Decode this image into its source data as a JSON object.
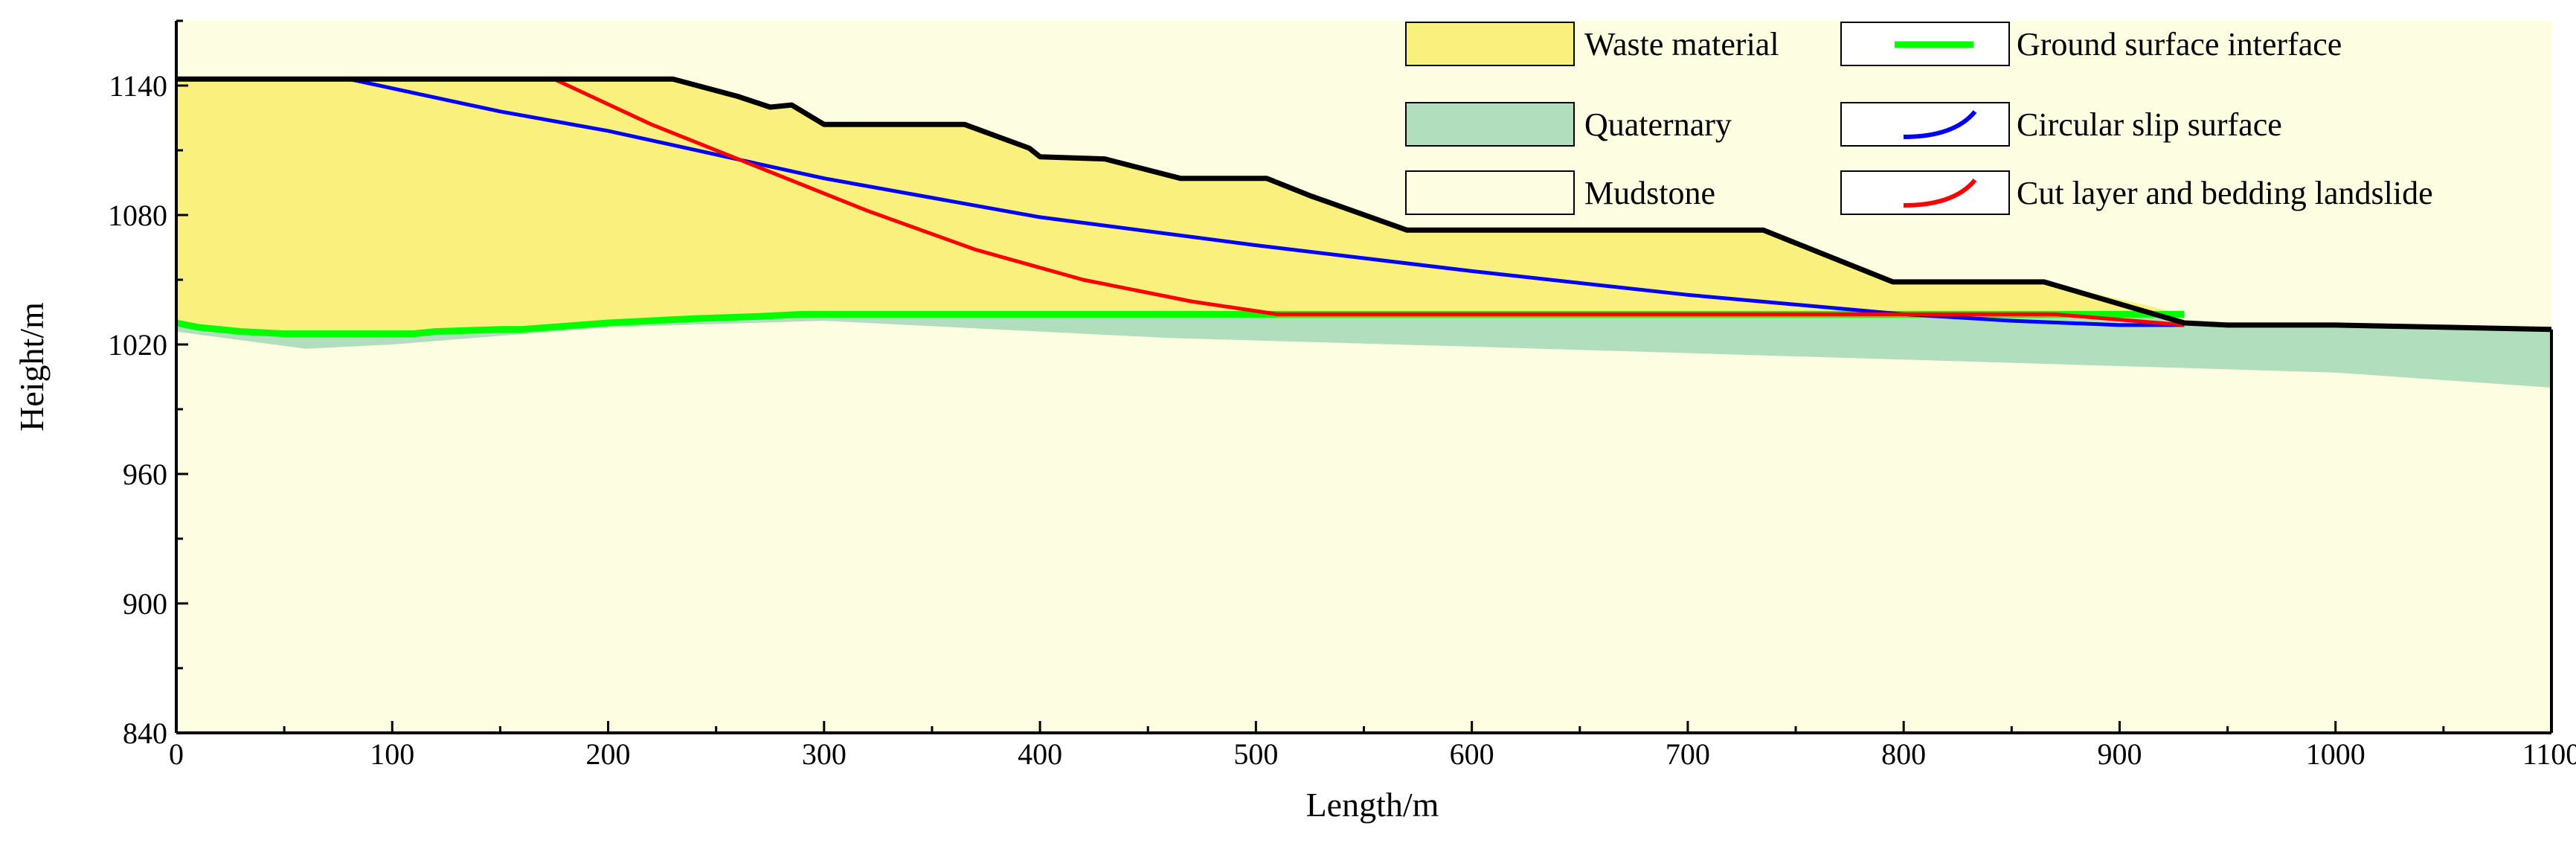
{
  "chart_data": {
    "type": "area",
    "title": "",
    "xlabel": "Length/m",
    "ylabel": "Height/m",
    "xlim": [
      0,
      1100
    ],
    "ylim": [
      840,
      1170
    ],
    "x_ticks": [
      0,
      100,
      200,
      300,
      400,
      500,
      600,
      700,
      800,
      900,
      1000,
      1100
    ],
    "y_ticks": [
      840,
      900,
      960,
      1020,
      1080,
      1140
    ],
    "colors": {
      "waste": "#f9f07e",
      "quaternary": "#b1dfbd",
      "mudstone": "#fdfde1",
      "ground": "#00ff00",
      "circular": "#0000ff",
      "bedding": "#ff0000",
      "outline": "#000000"
    },
    "legend": [
      {
        "key": "waste",
        "label": "Waste material",
        "kind": "patch"
      },
      {
        "key": "quaternary",
        "label": "Quaternary",
        "kind": "patch"
      },
      {
        "key": "mudstone",
        "label": "Mudstone",
        "kind": "patch"
      },
      {
        "key": "ground",
        "label": "Ground surface interface",
        "kind": "line"
      },
      {
        "key": "circular",
        "label": "Circular slip surface",
        "kind": "curve"
      },
      {
        "key": "bedding",
        "label": "Cut layer and bedding landslide",
        "kind": "curve"
      }
    ],
    "series": [
      {
        "name": "Top surface",
        "x": [
          0,
          230,
          260,
          275,
          285,
          300,
          325,
          365,
          395,
          400,
          430,
          465,
          505,
          525,
          570,
          610,
          735,
          795,
          865,
          930,
          950,
          1000,
          1100
        ],
        "y": [
          1143,
          1143,
          1135,
          1130,
          1131,
          1122,
          1122,
          1122,
          1111,
          1107,
          1106,
          1097,
          1097,
          1089,
          1073,
          1073,
          1073,
          1049,
          1049,
          1030,
          1029,
          1029,
          1027
        ]
      },
      {
        "name": "Ground surface interface",
        "x": [
          0,
          10,
          30,
          50,
          80,
          110,
          120,
          150,
          160,
          200,
          240,
          270,
          290,
          320,
          380,
          460,
          500,
          520,
          930
        ],
        "y": [
          1030,
          1028,
          1026,
          1025,
          1025,
          1025,
          1026,
          1027,
          1027,
          1030,
          1032,
          1033,
          1034,
          1034,
          1034,
          1034,
          1034,
          1034,
          1034
        ]
      },
      {
        "name": "Quaternary bottom",
        "x": [
          0,
          30,
          60,
          100,
          200,
          300,
          400,
          460,
          600,
          800,
          1000,
          1100
        ],
        "y": [
          1026,
          1022,
          1018,
          1020,
          1028,
          1031,
          1026,
          1023,
          1019,
          1013,
          1007,
          1000
        ]
      },
      {
        "name": "Circular slip surface",
        "x": [
          80,
          150,
          200,
          300,
          400,
          500,
          600,
          700,
          800,
          850,
          900,
          930
        ],
        "y": [
          1143,
          1128,
          1119,
          1097,
          1079,
          1066,
          1054,
          1043,
          1034,
          1031,
          1029,
          1029
        ]
      },
      {
        "name": "Cut layer and bedding landslide",
        "x": [
          175,
          220,
          270,
          320,
          370,
          420,
          470,
          510,
          525,
          800,
          870,
          930
        ],
        "y": [
          1143,
          1122,
          1102,
          1082,
          1064,
          1050,
          1040,
          1034,
          1034,
          1034,
          1034,
          1029
        ]
      }
    ]
  }
}
